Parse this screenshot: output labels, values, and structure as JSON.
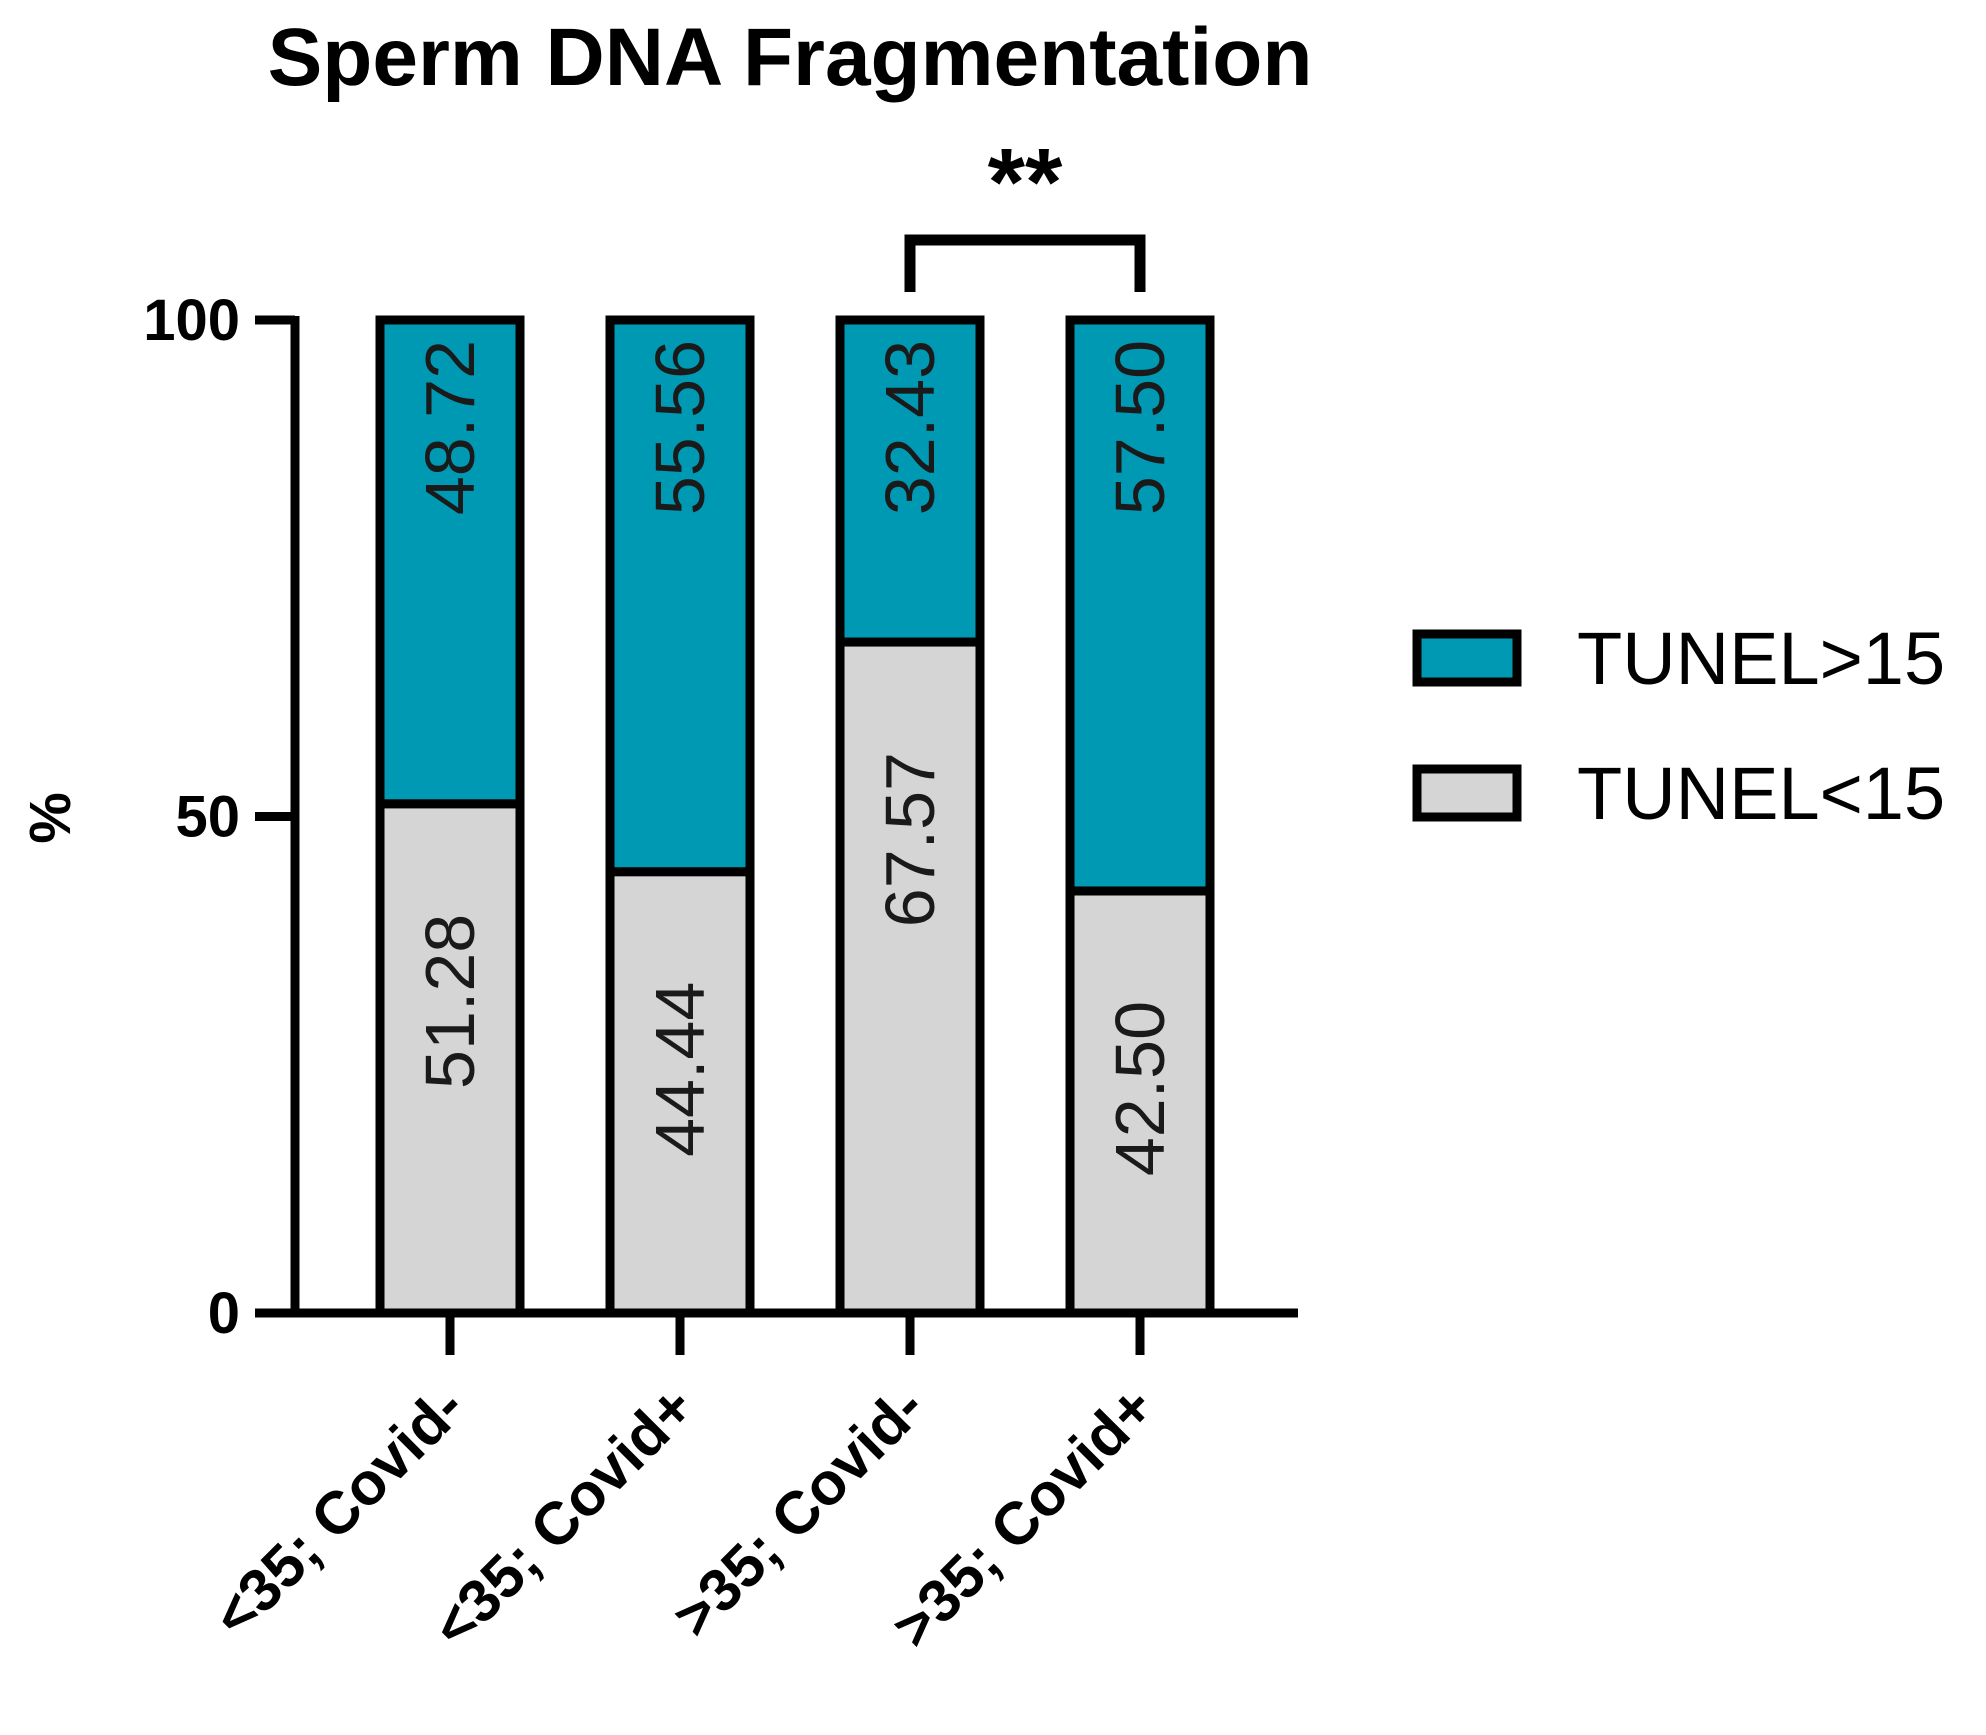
{
  "chart_data": {
    "type": "bar",
    "stacked": true,
    "title": "Sperm DNA Fragmentation",
    "ylabel": "%",
    "xlabel": "",
    "ylim": [
      0,
      100
    ],
    "yticks": [
      "0",
      "50",
      "100"
    ],
    "ytick_values": [
      0,
      50,
      100
    ],
    "categories": [
      "<35; Covid-",
      "<35; Covid+",
      ">35; Covid-",
      ">35; Covid+"
    ],
    "series": [
      {
        "name": "TUNEL<15",
        "color": "#d5d5d5",
        "values": [
          51.28,
          44.44,
          67.57,
          42.5
        ],
        "labels": [
          "51.28",
          "44.44",
          "67.57",
          "42.50"
        ]
      },
      {
        "name": "TUNEL>15",
        "color": "#0099b3",
        "values": [
          48.72,
          55.56,
          32.43,
          57.5
        ],
        "labels": [
          "48.72",
          "55.56",
          "32.43",
          "57.50"
        ]
      }
    ],
    "legend": {
      "position": "right",
      "items": [
        {
          "label": "TUNEL>15",
          "color": "#0099b3"
        },
        {
          "label": "TUNEL<15",
          "color": "#d5d5d5"
        }
      ]
    },
    "annotations": [
      {
        "type": "significance",
        "text": "**",
        "from_category": 2,
        "to_category": 3
      }
    ],
    "grid": false
  }
}
